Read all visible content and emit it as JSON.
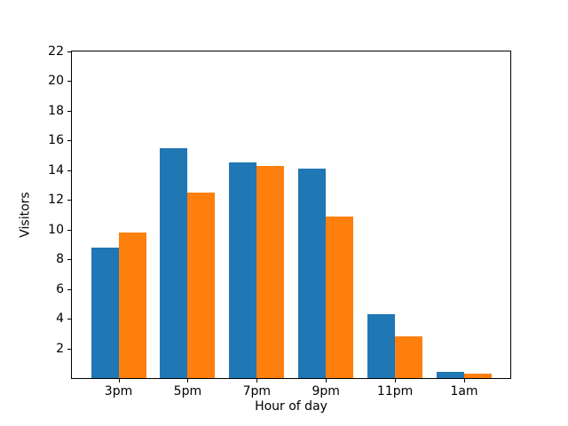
{
  "chart_data": {
    "type": "bar",
    "title": "",
    "xlabel": "Hour of day",
    "ylabel": "Visitors",
    "categories": [
      "3pm",
      "5pm",
      "7pm",
      "9pm",
      "11pm",
      "1am"
    ],
    "series": [
      {
        "name": "series-1-blue",
        "color": "#1f77b4",
        "values": [
          8.8,
          15.5,
          14.5,
          14.1,
          4.3,
          0.4
        ]
      },
      {
        "name": "series-2-orange",
        "color": "#ff7f0e",
        "values": [
          9.8,
          12.5,
          14.3,
          10.9,
          2.8,
          0.3
        ]
      }
    ],
    "ylim": [
      0,
      22
    ],
    "yticks": [
      2,
      4,
      6,
      8,
      10,
      12,
      14,
      16,
      18,
      20,
      22
    ],
    "grid": false,
    "legend": false,
    "background_color": "#ffffff",
    "axis_color": "#000000"
  }
}
